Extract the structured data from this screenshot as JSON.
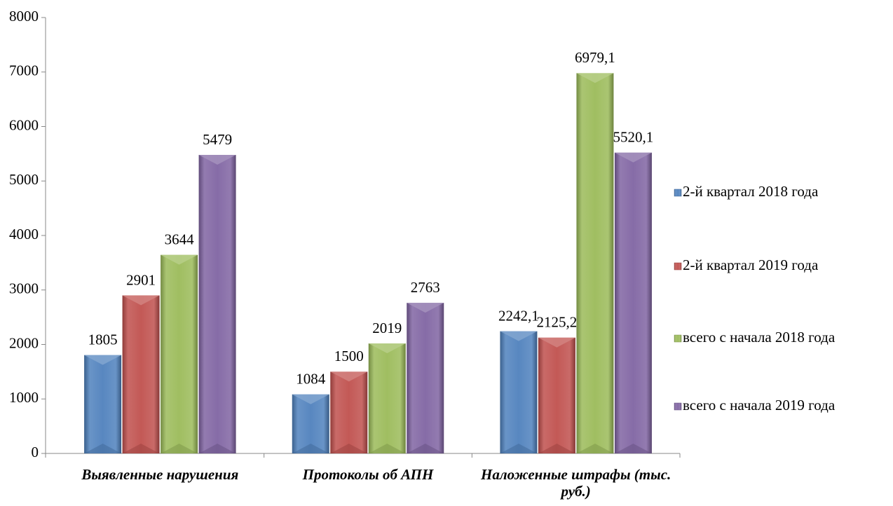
{
  "chart_data": {
    "type": "bar",
    "categories": [
      "Выявленные нарушения",
      "Протоколы об АПН",
      "Наложенные штрафы (тыс. руб.)"
    ],
    "series": [
      {
        "name": "2-й квартал 2018 года",
        "color": "#4f81bd",
        "values": [
          1805,
          1084,
          2242.1
        ],
        "value_labels": [
          "1805",
          "1084",
          "2242,1"
        ]
      },
      {
        "name": "2-й квартал 2019 года",
        "color": "#c0504d",
        "values": [
          2901,
          1500,
          2125.2
        ],
        "value_labels": [
          "2901",
          "1500",
          "2125,2"
        ]
      },
      {
        "name": "всего с начала 2018 года",
        "color": "#9bbb59",
        "values": [
          3644,
          2019,
          6979.1
        ],
        "value_labels": [
          "3644",
          "2019",
          "6979,1"
        ]
      },
      {
        "name": "всего с начала 2019 года",
        "color": "#8064a2",
        "values": [
          5479,
          2763,
          5520.1
        ],
        "value_labels": [
          "5479",
          "2763",
          "5520,1"
        ]
      }
    ],
    "ylim": [
      0,
      8000
    ],
    "yticks": [
      0,
      1000,
      2000,
      3000,
      4000,
      5000,
      6000,
      7000,
      8000
    ],
    "legend": "right"
  }
}
